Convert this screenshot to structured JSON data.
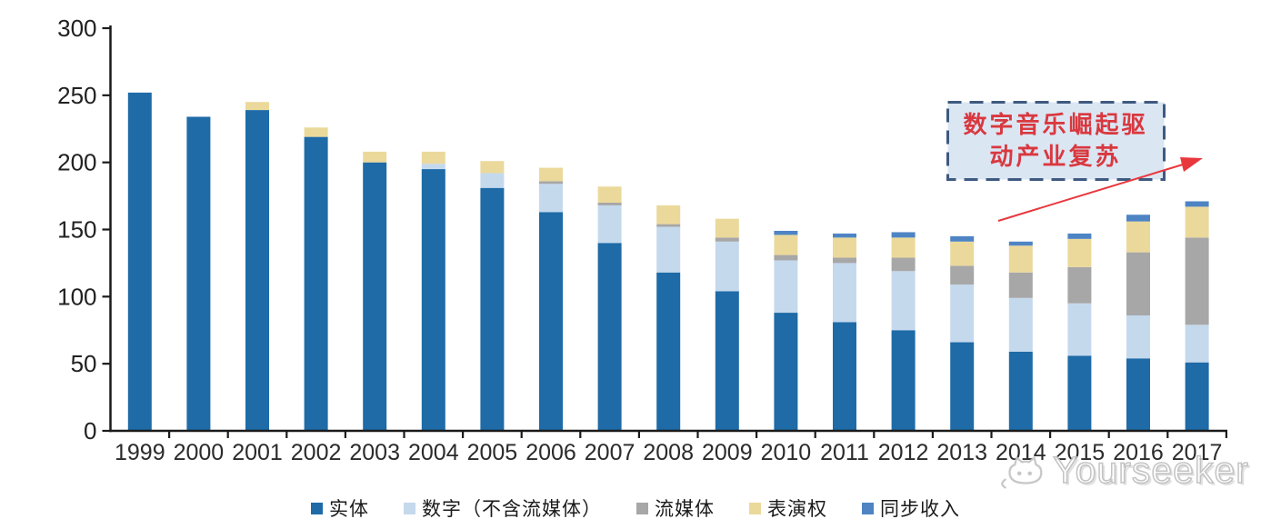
{
  "chart_data": {
    "type": "bar",
    "stacked": true,
    "categories": [
      "1999",
      "2000",
      "2001",
      "2002",
      "2003",
      "2004",
      "2005",
      "2006",
      "2007",
      "2008",
      "2009",
      "2010",
      "2011",
      "2012",
      "2013",
      "2014",
      "2015",
      "2016",
      "2017"
    ],
    "series": [
      {
        "name": "实体",
        "color": "#1E6BA7",
        "values": [
          252,
          234,
          239,
          219,
          200,
          195,
          181,
          163,
          140,
          118,
          104,
          88,
          81,
          75,
          66,
          59,
          56,
          54,
          51
        ]
      },
      {
        "name": "数字（不含流媒体）",
        "color": "#C5D9ED",
        "values": [
          0,
          0,
          0,
          0,
          0,
          4,
          11,
          21,
          28,
          34,
          37,
          39,
          44,
          44,
          43,
          40,
          39,
          32,
          28
        ]
      },
      {
        "name": "流媒体",
        "color": "#A7A7A7",
        "values": [
          0,
          0,
          0,
          0,
          0,
          0,
          0,
          2,
          2,
          2,
          3,
          4,
          4,
          10,
          14,
          19,
          27,
          47,
          65
        ]
      },
      {
        "name": "表演权",
        "color": "#EBD99B",
        "values": [
          0,
          0,
          6,
          7,
          8,
          9,
          9,
          10,
          12,
          14,
          14,
          15,
          15,
          15,
          18,
          20,
          21,
          23,
          23
        ]
      },
      {
        "name": "同步收入",
        "color": "#4E84C4",
        "values": [
          0,
          0,
          0,
          0,
          0,
          0,
          0,
          0,
          0,
          0,
          0,
          3,
          3,
          4,
          4,
          3,
          4,
          5,
          4
        ]
      }
    ],
    "ylim": [
      0,
      300
    ],
    "yticks": [
      0,
      50,
      100,
      150,
      200,
      250,
      300
    ],
    "xlabel": "",
    "ylabel": "",
    "title": "",
    "grid": false,
    "legend_position": "bottom"
  },
  "annotation": {
    "line1": "数字音乐崛起驱",
    "line2": "动产业复苏",
    "text_color": "#D9383F",
    "box_fill": "#DBE6F3",
    "box_border": "#3E5A80",
    "arrow_color": "#E8383D"
  },
  "watermark": {
    "text": "Yourseeker"
  }
}
